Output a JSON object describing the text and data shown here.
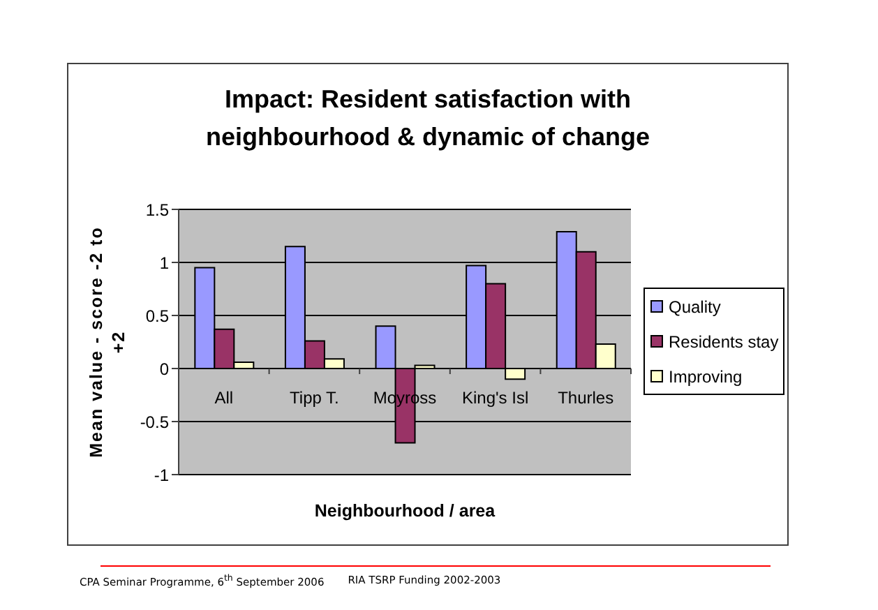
{
  "chart_data": {
    "type": "bar",
    "title": "Impact: Resident satisfaction with neighbourhood & dynamic of change",
    "xlabel": "Neighbourhood / area",
    "ylabel": "Mean value - score -2 to +2",
    "categories": [
      "All",
      "Tipp T.",
      "Moyross",
      "King's Isl",
      "Thurles"
    ],
    "series": [
      {
        "name": "Quality",
        "color": "#9999ff",
        "values": [
          0.95,
          1.15,
          0.4,
          0.97,
          1.29
        ]
      },
      {
        "name": "Residents stay",
        "color": "#993366",
        "values": [
          0.37,
          0.26,
          -0.7,
          0.8,
          1.1
        ]
      },
      {
        "name": "Improving",
        "color": "#ffffcc",
        "values": [
          0.06,
          0.09,
          0.03,
          -0.1,
          0.23
        ]
      }
    ],
    "ylim": [
      -1,
      1.5
    ],
    "yticks": [
      -1,
      -0.5,
      0,
      0.5,
      1,
      1.5
    ],
    "grid": "y",
    "legend": "right",
    "annotations": [
      "CPA Seminar Programme, 6$^{th}$ September 2006",
      "RIA TSRP Funding 2002-2003"
    ]
  }
}
